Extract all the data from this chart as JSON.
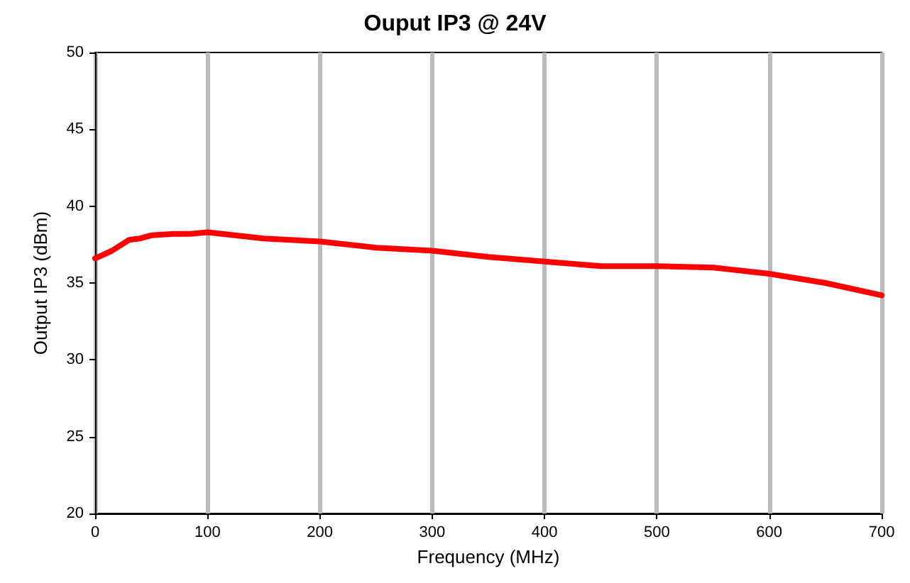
{
  "chart_data": {
    "type": "line",
    "title": "Ouput IP3 @ 24V",
    "xlabel": "Frequency (MHz)",
    "ylabel": "Output IP3 (dBm)",
    "series": [
      {
        "color": "#ff0000",
        "x": [
          0,
          15,
          30,
          40,
          50,
          70,
          85,
          100,
          150,
          200,
          250,
          300,
          350,
          400,
          450,
          500,
          550,
          600,
          650,
          700
        ],
        "values": [
          36.6,
          37.1,
          37.8,
          37.9,
          38.1,
          38.2,
          38.2,
          38.3,
          37.9,
          37.7,
          37.3,
          37.1,
          36.7,
          36.4,
          36.1,
          36.1,
          36.0,
          35.6,
          35.0,
          34.2
        ]
      }
    ],
    "xlim": [
      0,
      700
    ],
    "xticks": [
      0,
      100,
      200,
      300,
      400,
      500,
      600,
      700
    ],
    "ylim": [
      20,
      50
    ],
    "yticks": [
      20,
      25,
      30,
      35,
      40,
      45,
      50
    ],
    "grid": "x",
    "marker": "none",
    "line_style": "solid"
  }
}
